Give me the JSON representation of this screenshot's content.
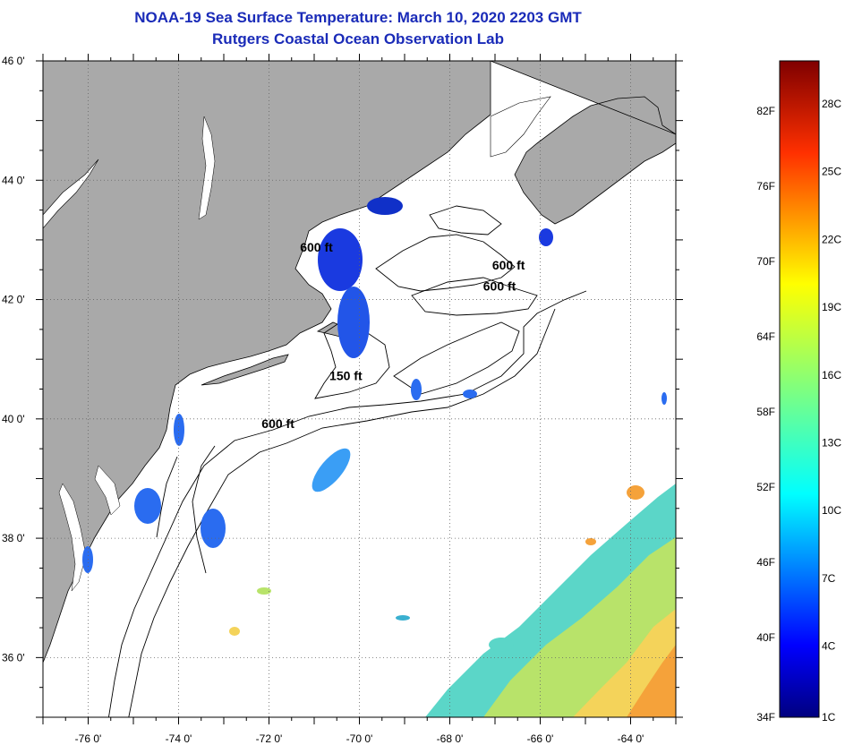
{
  "title": {
    "line1": "NOAA-19 Sea Surface Temperature:  March 10, 2020 2203 GMT",
    "line2": "Rutgers Coastal Ocean Observation Lab"
  },
  "map": {
    "lon_range": [
      -77,
      -63
    ],
    "lat_range": [
      35,
      46
    ],
    "lon_ticks": [
      {
        "value": -76,
        "label": "-76 0'"
      },
      {
        "value": -74,
        "label": "-74 0'"
      },
      {
        "value": -72,
        "label": "-72 0'"
      },
      {
        "value": -70,
        "label": "-70 0'"
      },
      {
        "value": -68,
        "label": "-68 0'"
      },
      {
        "value": -66,
        "label": "-66 0'"
      },
      {
        "value": -64,
        "label": "-64 0'"
      }
    ],
    "lat_ticks": [
      {
        "value": 46,
        "label": "46 0'"
      },
      {
        "value": 44,
        "label": "44 0'"
      },
      {
        "value": 42,
        "label": "42 0'"
      },
      {
        "value": 40,
        "label": "40 0'"
      },
      {
        "value": 38,
        "label": "38 0'"
      },
      {
        "value": 36,
        "label": "36 0'"
      }
    ],
    "contour_labels": [
      {
        "text": "600 ft",
        "lon": -70.95,
        "lat": 42.8
      },
      {
        "text": "600 ft",
        "lon": -66.7,
        "lat": 42.5
      },
      {
        "text": "600 ft",
        "lon": -66.9,
        "lat": 42.15
      },
      {
        "text": "150 ft",
        "lon": -70.3,
        "lat": 40.65
      },
      {
        "text": "600 ft",
        "lon": -71.8,
        "lat": 39.85
      }
    ],
    "grid": "dotted",
    "land_color": "#a9a9a9",
    "ocean_color": "#ffffff",
    "coast_color": "#000000"
  },
  "colorbar": {
    "fahrenheit_labels": [
      "82F",
      "76F",
      "70F",
      "64F",
      "58F",
      "52F",
      "46F",
      "40F",
      "34F"
    ],
    "celsius_labels": [
      "28C",
      "25C",
      "22C",
      "19C",
      "16C",
      "13C",
      "10C",
      "7C",
      "4C",
      "1C"
    ],
    "colors": [
      "#00007f",
      "#0000ff",
      "#007fff",
      "#00ffff",
      "#7fff7f",
      "#ffff00",
      "#ff7f00",
      "#ff0000",
      "#7f0000"
    ]
  }
}
